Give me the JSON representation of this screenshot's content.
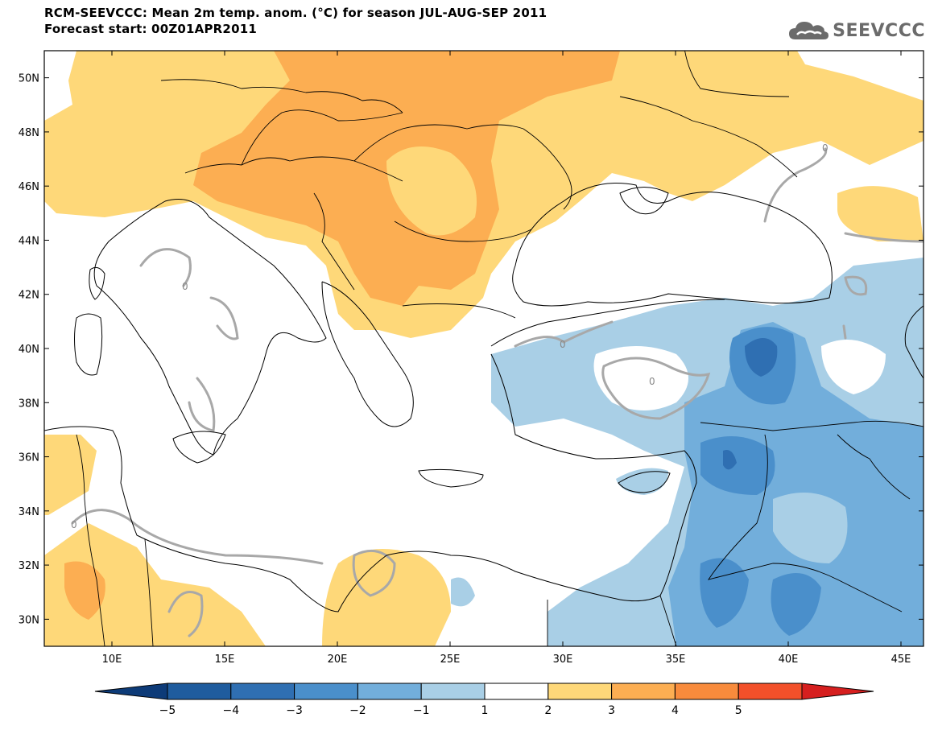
{
  "header": {
    "title_line1": "RCM-SEEVCCC: Mean 2m temp. anom. (°C) for season JUL-AUG-SEP 2011",
    "title_line2": "Forecast start: 00Z01APR2011"
  },
  "logo": {
    "text": "SEEVCCC",
    "icon": "cloud-icon"
  },
  "map": {
    "lon_range": [
      7,
      46
    ],
    "lat_range": [
      29,
      51
    ],
    "lon_ticks": [
      {
        "value": 10,
        "label": "10E"
      },
      {
        "value": 15,
        "label": "15E"
      },
      {
        "value": 20,
        "label": "20E"
      },
      {
        "value": 25,
        "label": "25E"
      },
      {
        "value": 30,
        "label": "30E"
      },
      {
        "value": 35,
        "label": "35E"
      },
      {
        "value": 40,
        "label": "40E"
      },
      {
        "value": 45,
        "label": "45E"
      }
    ],
    "lat_ticks": [
      {
        "value": 30,
        "label": "30N"
      },
      {
        "value": 32,
        "label": "32N"
      },
      {
        "value": 34,
        "label": "34N"
      },
      {
        "value": 36,
        "label": "36N"
      },
      {
        "value": 38,
        "label": "38N"
      },
      {
        "value": 40,
        "label": "40N"
      },
      {
        "value": 42,
        "label": "42N"
      },
      {
        "value": 44,
        "label": "44N"
      },
      {
        "value": 46,
        "label": "46N"
      },
      {
        "value": 48,
        "label": "48N"
      },
      {
        "value": 50,
        "label": "50N"
      }
    ],
    "contour_label": "0"
  },
  "colorbar": {
    "bins": [
      {
        "color": "#1f5c9e"
      },
      {
        "color": "#2f6fb2"
      },
      {
        "color": "#4a8fcb"
      },
      {
        "color": "#72aedb"
      },
      {
        "color": "#a9cfe6"
      },
      {
        "color": "#ffffff"
      },
      {
        "color": "#fed879"
      },
      {
        "color": "#fcae52"
      },
      {
        "color": "#f88b3c"
      },
      {
        "color": "#f2502a"
      }
    ],
    "end_low_color": "#0d3b78",
    "end_high_color": "#d61f1f",
    "labels": [
      "−5",
      "−4",
      "−3",
      "−2",
      "−1",
      "1",
      "2",
      "3",
      "4",
      "5"
    ]
  },
  "colors": {
    "orange": "#fcae52",
    "light_orange": "#fed879",
    "light_blue": "#a9cfe6",
    "mid_blue": "#72aedb",
    "blue": "#4a8fcb",
    "dark_blue": "#2f6fb2",
    "contour_gray": "#a8a8a8"
  }
}
